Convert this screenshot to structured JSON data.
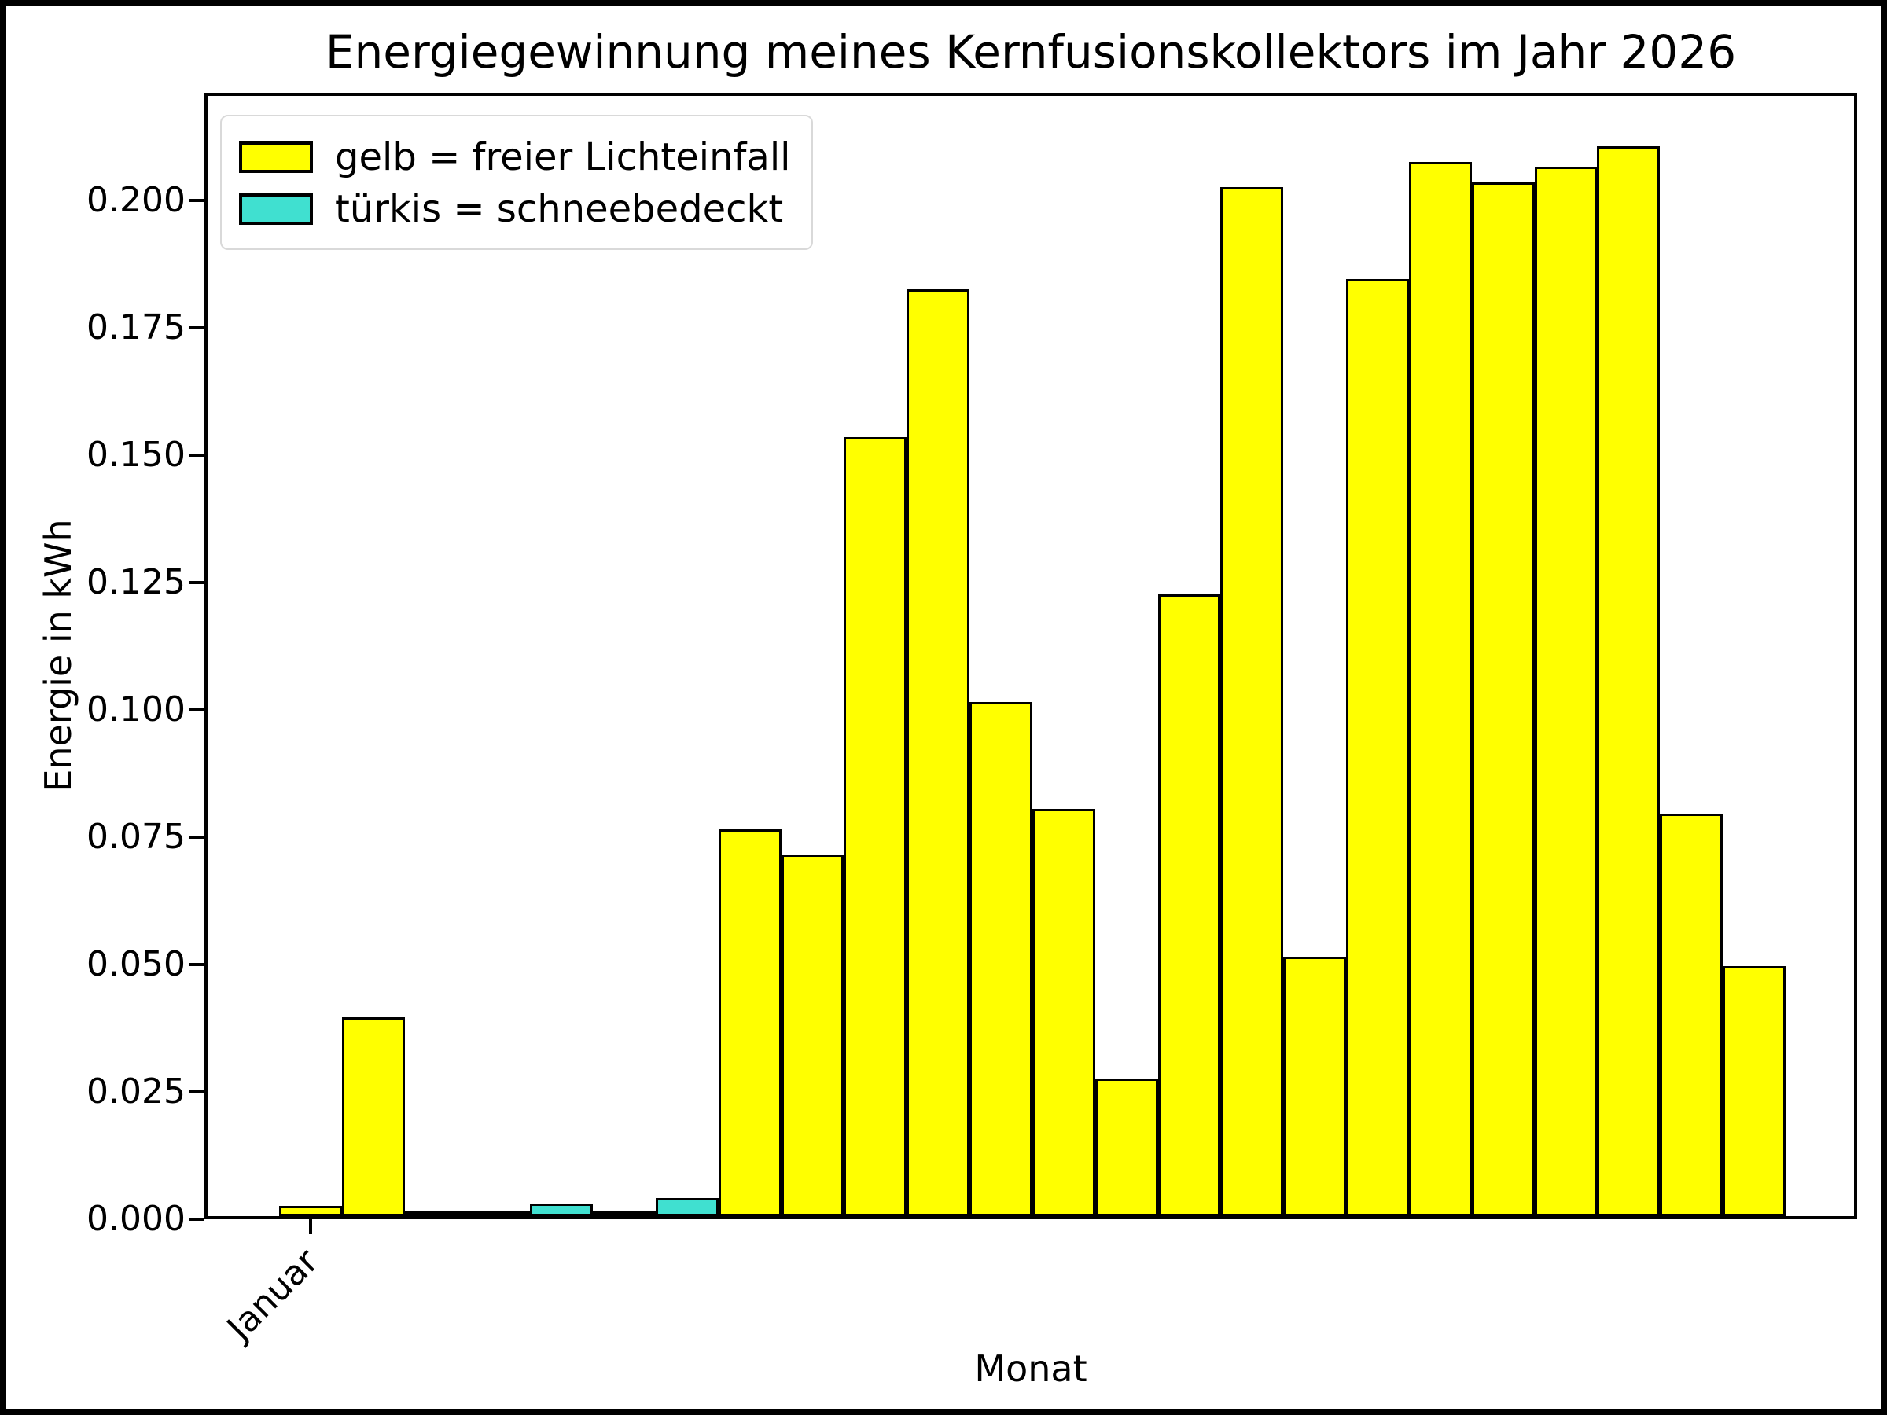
{
  "figure": {
    "title": "Energiegewinnung meines Kernfusionskollektors im Jahr 2026",
    "background_color": "#ffffff",
    "border_color": "#000000"
  },
  "legend": {
    "entries": [
      {
        "label": "gelb = freier Lichteinfall",
        "color": "#ffff00"
      },
      {
        "label": "türkis = schneebedeckt",
        "color": "#40e0d0"
      }
    ]
  },
  "axes": {
    "ylabel": "Energie in kWh",
    "xlabel": "Monat",
    "y_tick_labels": [
      "0.000",
      "0.025",
      "0.050",
      "0.075",
      "0.100",
      "0.125",
      "0.150",
      "0.175",
      "0.200"
    ],
    "x_tick_labels": [
      "Januar"
    ]
  },
  "chart_data": {
    "type": "bar",
    "title": "Energiegewinnung meines Kernfusionskollektors im Jahr 2026",
    "xlabel": "Monat",
    "ylabel": "Energie in kWh",
    "ylim": [
      0,
      0.221
    ],
    "grid": false,
    "legend_position": "upper left",
    "x_tick_labels": [
      "Januar"
    ],
    "color_meaning": {
      "yellow": "freier Lichteinfall",
      "turquoise": "schneebedeckt"
    },
    "colors": {
      "yellow": "#ffff00",
      "turquoise": "#40e0d0",
      "edge": "#000000"
    },
    "bars": [
      {
        "value": 0.002,
        "color": "yellow"
      },
      {
        "value": 0.039,
        "color": "yellow"
      },
      {
        "value": 0.001,
        "color": "turquoise"
      },
      {
        "value": 0.0005,
        "color": "turquoise"
      },
      {
        "value": 0.0025,
        "color": "turquoise"
      },
      {
        "value": 0.001,
        "color": "turquoise"
      },
      {
        "value": 0.0035,
        "color": "turquoise"
      },
      {
        "value": 0.076,
        "color": "yellow"
      },
      {
        "value": 0.071,
        "color": "yellow"
      },
      {
        "value": 0.153,
        "color": "yellow"
      },
      {
        "value": 0.182,
        "color": "yellow"
      },
      {
        "value": 0.101,
        "color": "yellow"
      },
      {
        "value": 0.08,
        "color": "yellow"
      },
      {
        "value": 0.027,
        "color": "yellow"
      },
      {
        "value": 0.122,
        "color": "yellow"
      },
      {
        "value": 0.202,
        "color": "yellow"
      },
      {
        "value": 0.051,
        "color": "yellow"
      },
      {
        "value": 0.184,
        "color": "yellow"
      },
      {
        "value": 0.207,
        "color": "yellow"
      },
      {
        "value": 0.203,
        "color": "yellow"
      },
      {
        "value": 0.206,
        "color": "yellow"
      },
      {
        "value": 0.21,
        "color": "yellow"
      },
      {
        "value": 0.079,
        "color": "yellow"
      },
      {
        "value": 0.049,
        "color": "yellow"
      }
    ]
  }
}
